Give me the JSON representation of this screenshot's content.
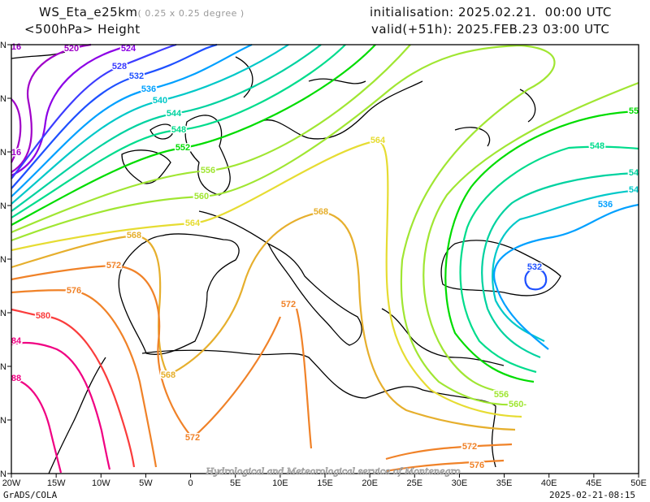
{
  "header": {
    "model": "WS_Eta_e25km",
    "resolution": "( 0.25 x 0.25 degree )",
    "field": "<500hPa> Height",
    "init": "initialisation: 2025.02.21.  00:00 UTC",
    "valid": "valid(+51h): 2025.FEB.23 03:00 UTC"
  },
  "footer": {
    "software": "GrADS/COLA",
    "timestamp": "2025-02-21-08:15",
    "watermark": "Hydrological and Meteorological service of Montenegro"
  },
  "axes": {
    "lon_labels": [
      "20W",
      "15W",
      "10W",
      "5W",
      "0",
      "5E",
      "10E",
      "15E",
      "20E",
      "25E",
      "30E",
      "35E",
      "40E",
      "45E",
      "50E"
    ],
    "lat_labels": [
      "N",
      "N",
      "N",
      "N",
      "N",
      "N",
      "N",
      "N",
      "N"
    ]
  },
  "contours": {
    "colors": {
      "516": "#a000c8",
      "520": "#a000c8",
      "524": "#8c00e6",
      "528": "#3c3cff",
      "532": "#1e50ff",
      "536": "#00a0ff",
      "540": "#00c8c8",
      "544": "#00d2a0",
      "548": "#00dc8c",
      "552": "#00dc00",
      "556": "#a0e632",
      "560": "#a0e632",
      "564": "#e6dc32",
      "568": "#e6af2d",
      "572": "#f08228",
      "576": "#f08228",
      "580": "#fa3c3c",
      "584": "#f00082",
      "588": "#f00082"
    },
    "labels": [
      {
        "v": "16",
        "c": "516"
      },
      {
        "v": "16",
        "c": "516"
      },
      {
        "v": "520",
        "c": "520"
      },
      {
        "v": "524",
        "c": "524"
      },
      {
        "v": "528",
        "c": "528"
      },
      {
        "v": "532",
        "c": "532"
      },
      {
        "v": "536",
        "c": "536"
      },
      {
        "v": "540",
        "c": "540"
      },
      {
        "v": "544",
        "c": "544"
      },
      {
        "v": "548",
        "c": "548"
      },
      {
        "v": "552",
        "c": "552"
      },
      {
        "v": "556",
        "c": "556"
      },
      {
        "v": "560",
        "c": "560"
      },
      {
        "v": "564",
        "c": "564"
      },
      {
        "v": "568",
        "c": "568"
      },
      {
        "v": "572",
        "c": "572"
      },
      {
        "v": "576",
        "c": "576"
      },
      {
        "v": "580",
        "c": "580"
      },
      {
        "v": "84",
        "c": "584"
      },
      {
        "v": "88",
        "c": "588"
      },
      {
        "v": "564",
        "c": "564"
      },
      {
        "v": "568",
        "c": "568"
      },
      {
        "v": "572",
        "c": "572"
      },
      {
        "v": "568",
        "c": "568"
      },
      {
        "v": "572",
        "c": "572"
      },
      {
        "v": "55",
        "c": "552"
      },
      {
        "v": "548",
        "c": "548"
      },
      {
        "v": "54",
        "c": "544"
      },
      {
        "v": "54",
        "c": "540"
      },
      {
        "v": "536",
        "c": "536"
      },
      {
        "v": "532",
        "c": "532"
      },
      {
        "v": "556",
        "c": "556"
      },
      {
        "v": "560-",
        "c": "560"
      },
      {
        "v": "572",
        "c": "572"
      },
      {
        "v": "576",
        "c": "576"
      }
    ]
  }
}
